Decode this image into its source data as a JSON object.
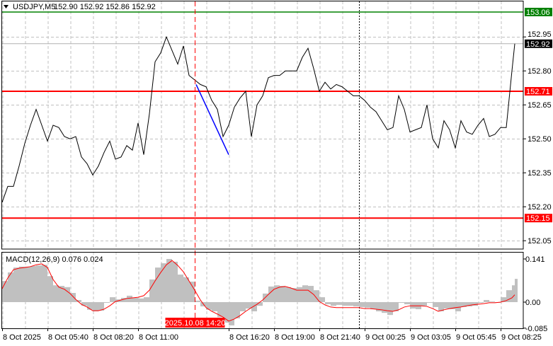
{
  "header": {
    "arrow_icon": "triangle-down-icon",
    "symbol": "USDJPY,M5",
    "ohlc": "152.90 152.92 152.86 152.92"
  },
  "colors": {
    "price_line": "#000000",
    "support_resistance": "#ff0000",
    "target_level": "#008000",
    "trendline": "#0000ff",
    "histogram": "#c0c0c0",
    "signal": "#ff0000",
    "crosshair": "#ff0000",
    "grid": "#c0c0c0"
  },
  "levels": {
    "green": {
      "value": 153.06,
      "label": "153.06"
    },
    "current": {
      "value": 152.92,
      "label": "152.92"
    },
    "red_upper": {
      "value": 152.71,
      "label": "152.71"
    },
    "red_lower": {
      "value": 152.15,
      "label": "152.15"
    }
  },
  "crosshair": {
    "label": "2025.10.08 14:20",
    "time": "2025.10.08 14:20"
  },
  "chart_data": [
    {
      "type": "line",
      "title": "USDJPY,M5",
      "ylim": [
        152.0,
        153.1
      ],
      "y_ticks": [
        "152.95",
        "152.80",
        "152.65",
        "152.50",
        "152.35",
        "152.20",
        "152.05"
      ],
      "x_ticks": [
        "8 Oct 2025",
        "8 Oct 05:40",
        "8 Oct 08:20",
        "8 Oct 11:00",
        "8 Oct 16:20",
        "8 Oct 19:00",
        "8 Oct 21:40",
        "9 Oct 00:25",
        "9 Oct 03:05",
        "9 Oct 05:45",
        "9 Oct 08:25"
      ],
      "grid": true,
      "day_separator": "2025.10.09 00:00",
      "trendline": {
        "from": [
          "2025.10.08 14:25",
          152.74
        ],
        "to": [
          "2025.10.08 16:20",
          152.43
        ]
      },
      "times": [
        "2025.10.08 03:00",
        "2025.10.08 03:20",
        "2025.10.08 03:40",
        "2025.10.08 04:00",
        "2025.10.08 04:20",
        "2025.10.08 04:40",
        "2025.10.08 05:00",
        "2025.10.08 05:20",
        "2025.10.08 05:40",
        "2025.10.08 06:00",
        "2025.10.08 06:20",
        "2025.10.08 06:40",
        "2025.10.08 07:00",
        "2025.10.08 07:20",
        "2025.10.08 07:40",
        "2025.10.08 08:00",
        "2025.10.08 08:20",
        "2025.10.08 08:40",
        "2025.10.08 09:00",
        "2025.10.08 09:20",
        "2025.10.08 09:40",
        "2025.10.08 10:00",
        "2025.10.08 10:20",
        "2025.10.08 10:40",
        "2025.10.08 11:00",
        "2025.10.08 11:20",
        "2025.10.08 11:40",
        "2025.10.08 12:00",
        "2025.10.08 12:20",
        "2025.10.08 12:40",
        "2025.10.08 13:00",
        "2025.10.08 13:20",
        "2025.10.08 13:40",
        "2025.10.08 14:00",
        "2025.10.08 14:20",
        "2025.10.08 14:40",
        "2025.10.08 15:00",
        "2025.10.08 15:20",
        "2025.10.08 15:40",
        "2025.10.08 16:00",
        "2025.10.08 16:20",
        "2025.10.08 16:40",
        "2025.10.08 17:00",
        "2025.10.08 17:20",
        "2025.10.08 17:40",
        "2025.10.08 18:00",
        "2025.10.08 18:20",
        "2025.10.08 18:40",
        "2025.10.08 19:00",
        "2025.10.08 19:20",
        "2025.10.08 19:40",
        "2025.10.08 20:00",
        "2025.10.08 20:20",
        "2025.10.08 20:40",
        "2025.10.08 21:00",
        "2025.10.08 21:20",
        "2025.10.08 21:40",
        "2025.10.08 22:00",
        "2025.10.08 22:20",
        "2025.10.08 22:40",
        "2025.10.08 23:00",
        "2025.10.08 23:20",
        "2025.10.08 23:40",
        "2025.10.09 00:00",
        "2025.10.09 00:20",
        "2025.10.09 00:40",
        "2025.10.09 01:00",
        "2025.10.09 01:20",
        "2025.10.09 01:40",
        "2025.10.09 02:00",
        "2025.10.09 02:20",
        "2025.10.09 02:40",
        "2025.10.09 03:00",
        "2025.10.09 03:20",
        "2025.10.09 03:40",
        "2025.10.09 04:00",
        "2025.10.09 04:20",
        "2025.10.09 04:40",
        "2025.10.09 05:00",
        "2025.10.09 05:20",
        "2025.10.09 05:40",
        "2025.10.09 06:00",
        "2025.10.09 06:20",
        "2025.10.09 06:40",
        "2025.10.09 07:00",
        "2025.10.09 07:20",
        "2025.10.09 07:40",
        "2025.10.09 08:00",
        "2025.10.09 08:20",
        "2025.10.09 08:40",
        "2025.10.09 09:00",
        "2025.10.09 09:10"
      ],
      "close": [
        152.22,
        152.29,
        152.29,
        152.38,
        152.48,
        152.56,
        152.63,
        152.56,
        152.49,
        152.56,
        152.55,
        152.51,
        152.5,
        152.51,
        152.42,
        152.39,
        152.34,
        152.38,
        152.44,
        152.49,
        152.41,
        152.42,
        152.47,
        152.45,
        152.57,
        152.43,
        152.61,
        152.84,
        152.88,
        152.95,
        152.89,
        152.83,
        152.91,
        152.78,
        152.76,
        152.74,
        152.73,
        152.67,
        152.63,
        152.51,
        152.56,
        152.64,
        152.68,
        152.71,
        152.51,
        152.65,
        152.69,
        152.77,
        152.78,
        152.78,
        152.8,
        152.8,
        152.8,
        152.86,
        152.9,
        152.81,
        152.71,
        152.75,
        152.72,
        152.74,
        152.73,
        152.71,
        152.69,
        152.69,
        152.67,
        152.64,
        152.62,
        152.58,
        152.54,
        152.55,
        152.69,
        152.63,
        152.53,
        152.54,
        152.55,
        152.65,
        152.5,
        152.46,
        152.58,
        152.54,
        152.46,
        152.58,
        152.53,
        152.52,
        152.56,
        152.59,
        152.51,
        152.52,
        152.55,
        152.55,
        152.8,
        152.92
      ]
    },
    {
      "type": "bar",
      "title": "MACD(12,26,9) 0.076 0.024",
      "ylim": [
        -0.085,
        0.141
      ],
      "y_ticks": [
        "0.141",
        "0.00",
        "-0.085"
      ],
      "main": [
        0.069,
        0.097,
        0.113,
        0.116,
        0.116,
        0.118,
        0.12,
        0.122,
        0.085,
        0.055,
        0.053,
        0.049,
        0.03,
        0.007,
        -0.012,
        -0.025,
        -0.03,
        -0.028,
        -0.002,
        0.016,
        0.009,
        0.014,
        0.021,
        0.014,
        0.012,
        0.016,
        0.074,
        0.113,
        0.127,
        0.141,
        0.132,
        0.09,
        0.081,
        0.067,
        0.005,
        -0.014,
        -0.025,
        -0.03,
        -0.049,
        -0.067,
        -0.076,
        -0.053,
        -0.03,
        -0.021,
        -0.03,
        -0.012,
        0.028,
        0.051,
        0.055,
        0.053,
        0.049,
        0.046,
        0.049,
        0.055,
        0.053,
        0.039,
        0.016,
        -0.007,
        -0.012,
        -0.009,
        -0.012,
        -0.012,
        -0.014,
        -0.016,
        -0.018,
        -0.023,
        -0.03,
        -0.035,
        -0.042,
        -0.03,
        -0.002,
        -0.007,
        -0.021,
        -0.023,
        -0.012,
        -0.002,
        -0.016,
        -0.03,
        -0.021,
        -0.023,
        -0.03,
        -0.016,
        -0.014,
        -0.012,
        -0.002,
        0.007,
        0.002,
        0.0,
        0.016,
        0.039,
        0.055,
        0.076
      ],
      "signal": [
        0.044,
        0.079,
        0.106,
        0.111,
        0.113,
        0.116,
        0.122,
        0.125,
        0.113,
        0.074,
        0.049,
        0.042,
        0.028,
        0.009,
        -0.007,
        -0.016,
        -0.028,
        -0.028,
        -0.023,
        -0.012,
        0.002,
        0.007,
        0.012,
        0.014,
        0.016,
        0.021,
        0.039,
        0.069,
        0.097,
        0.122,
        0.136,
        0.12,
        0.099,
        0.069,
        0.039,
        0.007,
        -0.018,
        -0.03,
        -0.039,
        -0.049,
        -0.062,
        -0.055,
        -0.044,
        -0.03,
        -0.018,
        -0.007,
        0.007,
        0.025,
        0.042,
        0.049,
        0.051,
        0.046,
        0.039,
        0.039,
        0.039,
        0.025,
        0.002,
        -0.009,
        -0.016,
        -0.018,
        -0.018,
        -0.018,
        -0.018,
        -0.018,
        -0.021,
        -0.021,
        -0.023,
        -0.025,
        -0.028,
        -0.03,
        -0.025,
        -0.016,
        -0.012,
        -0.012,
        -0.012,
        -0.014,
        -0.021,
        -0.03,
        -0.025,
        -0.021,
        -0.018,
        -0.016,
        -0.012,
        -0.009,
        -0.007,
        -0.005,
        -0.002,
        -0.002,
        0.0,
        0.005,
        0.014,
        0.024
      ]
    }
  ]
}
